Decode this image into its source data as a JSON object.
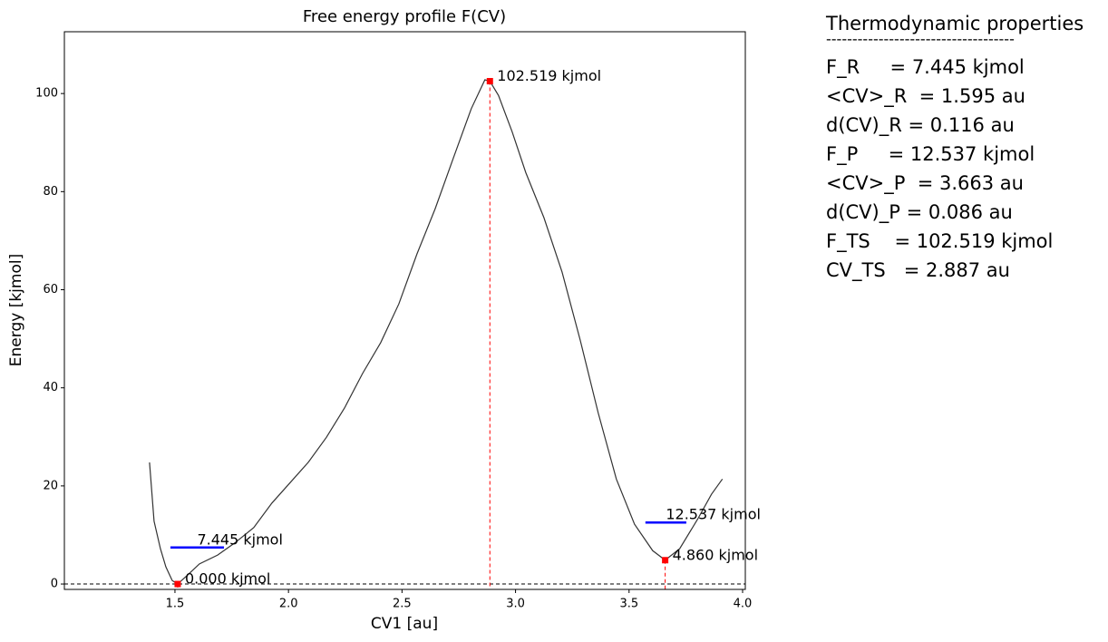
{
  "chart_data": {
    "type": "line",
    "title": "Free energy profile F(CV)",
    "xlabel": "CV1 [au]",
    "ylabel": "Energy [kjmol]",
    "x": [
      1.388,
      1.408,
      1.436,
      1.46,
      1.488,
      1.512,
      1.548,
      1.608,
      1.688,
      1.767,
      1.847,
      1.927,
      2.008,
      2.087,
      2.167,
      2.247,
      2.326,
      2.406,
      2.486,
      2.566,
      2.646,
      2.725,
      2.805,
      2.865,
      2.887,
      2.925,
      2.985,
      3.045,
      3.125,
      3.205,
      3.285,
      3.364,
      3.444,
      3.524,
      3.604,
      3.659,
      3.723,
      3.803,
      3.863,
      3.911
    ],
    "series": [
      {
        "color": "#333333",
        "values": [
          24.8,
          12.8,
          7.2,
          3.5,
          0.7,
          0,
          1.5,
          4.1,
          5.9,
          8.5,
          11.5,
          16.5,
          20.7,
          24.8,
          29.9,
          35.9,
          42.9,
          49.2,
          57.1,
          67.3,
          76.5,
          86.7,
          96.9,
          102.8,
          102.519,
          99.6,
          92.2,
          83.9,
          74.7,
          63.6,
          49.7,
          34.9,
          21.4,
          12.2,
          6.8,
          4.86,
          7.2,
          13.3,
          18.3,
          21.4
        ]
      }
    ],
    "xlim": [
      1.013,
      4.012
    ],
    "ylim": [
      -1.1,
      112.6
    ],
    "xticks": [
      1.5,
      {
        "value": 2,
        "label": "2.0"
      },
      2.5,
      {
        "value": 3,
        "label": "3.0"
      },
      3.5,
      {
        "value": 4,
        "label": "4.0"
      }
    ],
    "yticks": [
      0,
      20,
      40,
      60,
      80,
      100
    ],
    "baseline": {
      "y": 0,
      "color": "#000000"
    },
    "points": [
      {
        "x": 1.512,
        "y": 0,
        "label": "0.000 kjmol",
        "color": "#ff0000"
      },
      {
        "x": 2.887,
        "y": 102.519,
        "label": "102.519 kjmol",
        "color": "#ff0000"
      },
      {
        "x": 3.659,
        "y": 4.86,
        "label": "4.860 kjmol",
        "color": "#ff0000"
      }
    ],
    "levels": [
      {
        "y": 7.445,
        "x": [
          1.48,
          1.716
        ],
        "label": "7.445 kjmol",
        "color": "#0000ff"
      },
      {
        "y": 12.537,
        "x": [
          3.572,
          3.752
        ],
        "label": "12.537 kjmol",
        "color": "#0000ff"
      }
    ]
  },
  "properties": {
    "title": "Thermodynamic properties",
    "separator": "------------------------------------",
    "lines": [
      "F_R     = 7.445 kjmol",
      "<CV>_R  = 1.595 au",
      "d(CV)_R = 0.116 au",
      "F_P     = 12.537 kjmol",
      "<CV>_P  = 3.663 au",
      "d(CV)_P = 0.086 au",
      "F_TS    = 102.519 kjmol",
      "CV_TS   = 2.887 au"
    ]
  }
}
